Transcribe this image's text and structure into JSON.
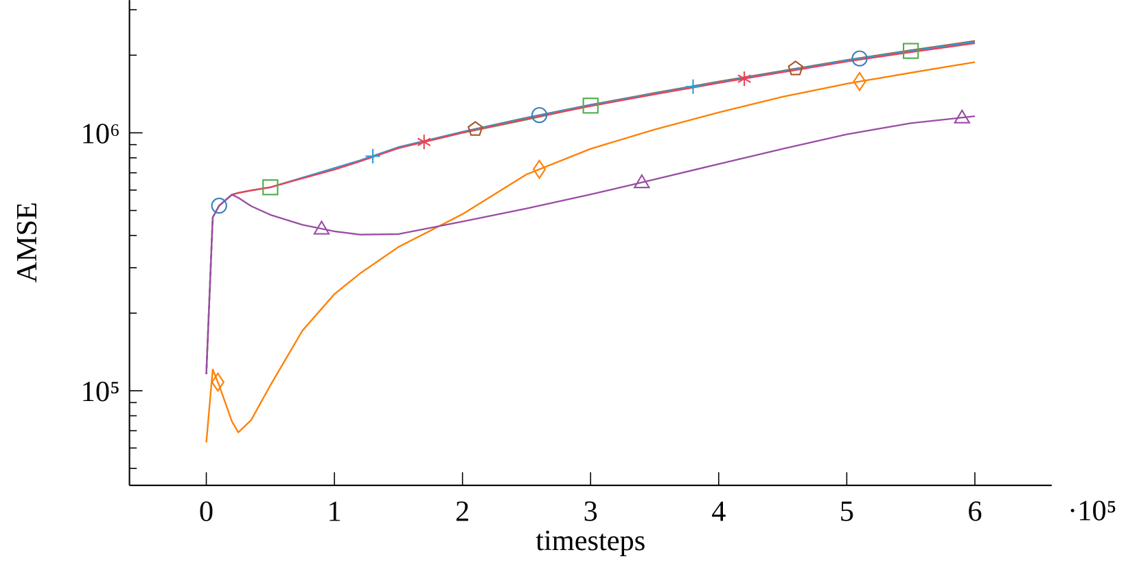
{
  "chart_data": {
    "type": "line",
    "x_label": "timesteps",
    "y_label": "AMSE",
    "x_multiplier": "·10⁵",
    "log_y": true,
    "grid": false,
    "xlim": [
      -60000,
      660000
    ],
    "ylim": [
      43000,
      3270000
    ],
    "xticks": [
      {
        "value": 0,
        "label": "0"
      },
      {
        "value": 100000,
        "label": "1"
      },
      {
        "value": 200000,
        "label": "2"
      },
      {
        "value": 300000,
        "label": "3"
      },
      {
        "value": 400000,
        "label": "4"
      },
      {
        "value": 500000,
        "label": "5"
      },
      {
        "value": 600000,
        "label": "6"
      }
    ],
    "yticks": [
      {
        "value": 100000,
        "label": "10⁵"
      },
      {
        "value": 1000000,
        "label": "10⁶"
      }
    ],
    "y_minor_ticks": [
      50000,
      60000,
      70000,
      80000,
      90000,
      200000,
      300000,
      400000,
      500000,
      600000,
      700000,
      800000,
      900000,
      2000000,
      3000000
    ],
    "x": [
      0,
      5000,
      10000,
      20000,
      25000,
      35000,
      50000,
      75000,
      100000,
      120000,
      150000,
      200000,
      250000,
      300000,
      350000,
      400000,
      450000,
      500000,
      550000,
      600000
    ],
    "series": [
      {
        "color": "#377eb8",
        "marker": "circle",
        "marker_x": [
          10000,
          260000,
          510000
        ],
        "values": [
          116000,
          470000,
          522000,
          576000,
          585000,
          598000,
          615000,
          670000,
          730000,
          782000,
          880000,
          1010000,
          1145000,
          1285000,
          1425000,
          1575000,
          1735000,
          1910000,
          2080000,
          2260000
        ]
      },
      {
        "color": "#4daf4a",
        "marker": "square",
        "marker_x": [
          50000,
          300000,
          550000
        ],
        "values": [
          116000,
          470000,
          522000,
          576000,
          585000,
          598000,
          615000,
          668000,
          725000,
          778000,
          872000,
          1000000,
          1125000,
          1275000,
          1418000,
          1570000,
          1730000,
          1905000,
          2078000,
          2255000
        ]
      },
      {
        "color": "#a65628",
        "marker": "pentagon",
        "marker_x": [
          210000,
          460000
        ],
        "values": [
          116000,
          470000,
          522000,
          576000,
          585000,
          598000,
          615000,
          668000,
          726000,
          780000,
          878000,
          1008000,
          1142000,
          1283000,
          1428000,
          1580000,
          1740000,
          1915000,
          2090000,
          2270000
        ]
      },
      {
        "color": "#2b9fd6",
        "marker": "plus",
        "marker_x": [
          130000,
          380000
        ],
        "values": [
          116000,
          470000,
          522000,
          576000,
          585000,
          598000,
          615000,
          669000,
          728000,
          781000,
          878000,
          1008000,
          1140000,
          1280000,
          1422000,
          1572000,
          1732000,
          1908000,
          2078000,
          2255000
        ]
      },
      {
        "color": "#e8435a",
        "marker": "asterisk",
        "marker_x": [
          170000,
          420000
        ],
        "values": [
          116000,
          470000,
          522000,
          576000,
          585000,
          598000,
          615000,
          666000,
          720000,
          775000,
          872000,
          1002000,
          1132000,
          1270000,
          1410000,
          1560000,
          1718000,
          1890000,
          2055000,
          2225000
        ]
      },
      {
        "color": "#ff7f00",
        "marker": "diamond",
        "marker_x": [
          9000,
          260000,
          510000
        ],
        "values": [
          63000,
          121000,
          105000,
          76000,
          69000,
          77000,
          105000,
          171000,
          237000,
          285000,
          361000,
          484000,
          690000,
          867000,
          1030000,
          1200000,
          1380000,
          1550000,
          1710000,
          1880000
        ]
      },
      {
        "color": "#984ea3",
        "marker": "triangle",
        "marker_x": [
          90000,
          340000,
          590000
        ],
        "values": [
          116000,
          470000,
          522000,
          576000,
          560000,
          520000,
          481000,
          440000,
          415000,
          403000,
          405000,
          453000,
          509000,
          577000,
          660000,
          757000,
          867000,
          987000,
          1090000,
          1160000
        ]
      }
    ]
  }
}
